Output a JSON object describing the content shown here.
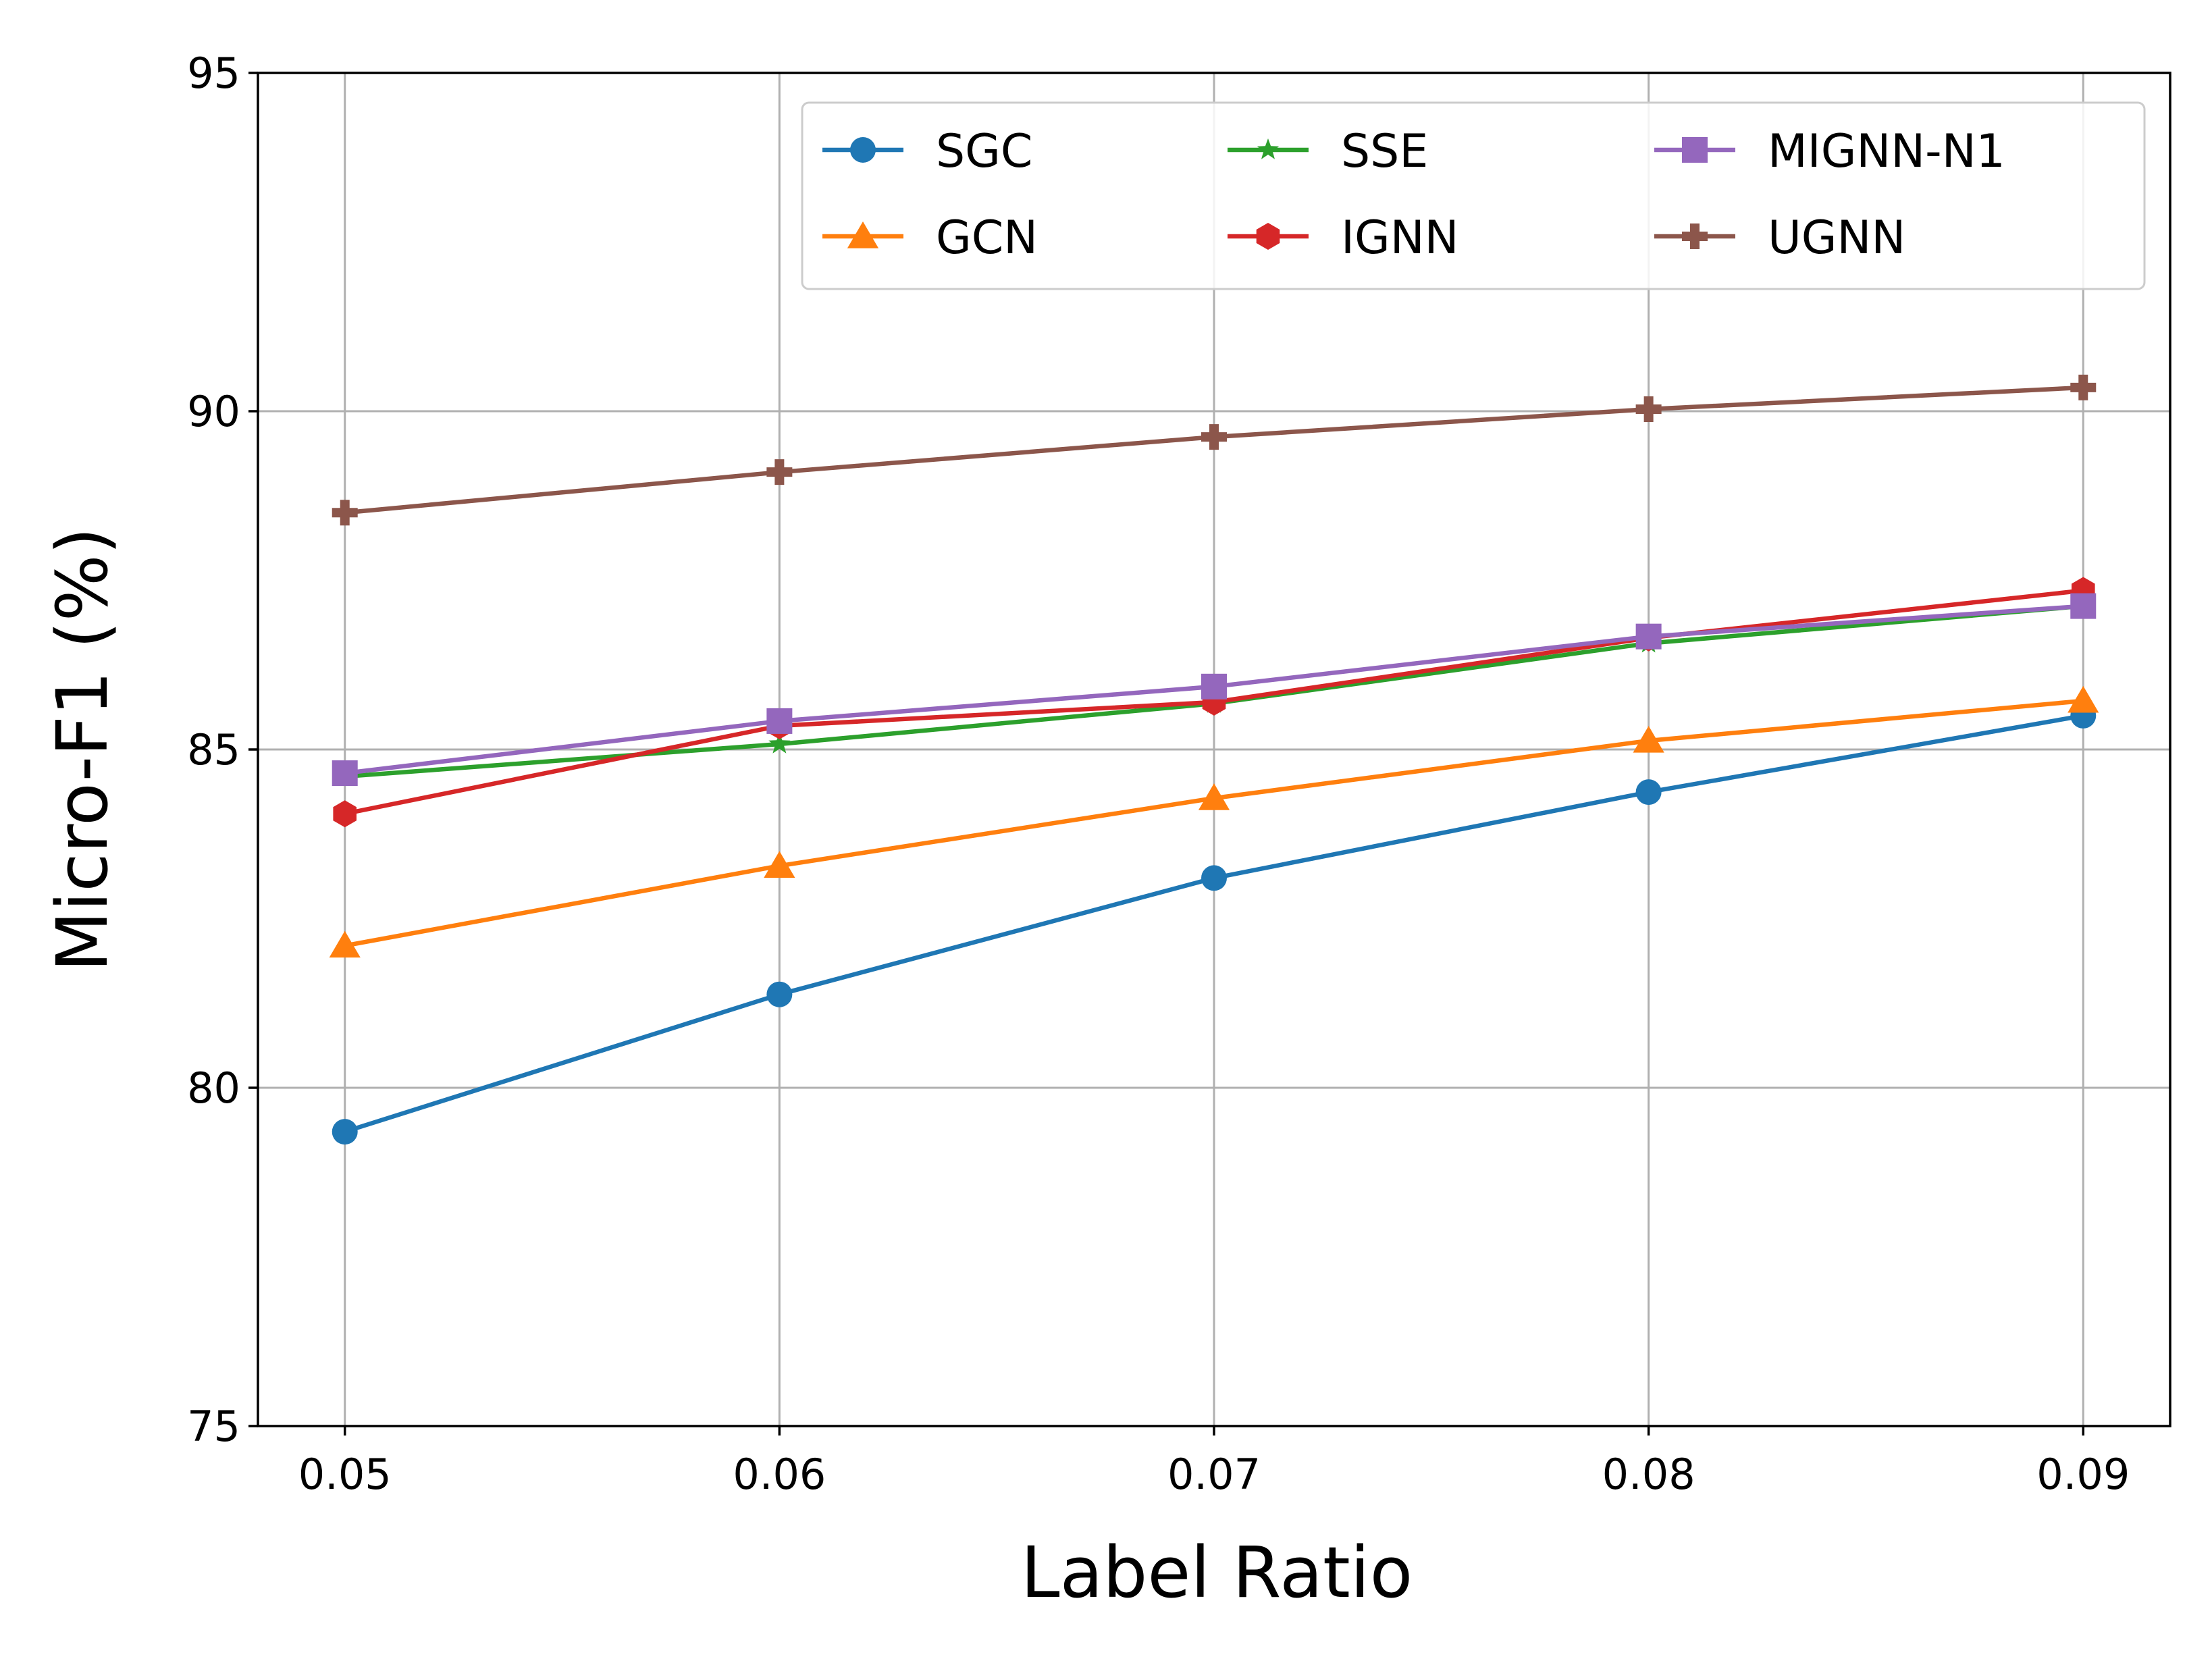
{
  "chart_data": {
    "type": "line",
    "title": "",
    "xlabel": "Label Ratio",
    "ylabel": "Micro-F1 (%)",
    "x": [
      0.05,
      0.06,
      0.07,
      0.08,
      0.09
    ],
    "x_tick_labels": [
      "0.05",
      "0.06",
      "0.07",
      "0.08",
      "0.09"
    ],
    "y_ticks": [
      75,
      80,
      85,
      90,
      95
    ],
    "y_tick_labels": [
      "75",
      "80",
      "85",
      "90",
      "95"
    ],
    "xlim": [
      0.048,
      0.092
    ],
    "ylim": [
      75,
      95
    ],
    "grid": true,
    "legend_position": "top-right",
    "legend_columns": 3,
    "series": [
      {
        "name": "SGC",
        "color": "#1f77b4",
        "marker": "circle",
        "values": [
          79.35,
          81.38,
          83.1,
          84.37,
          85.5
        ]
      },
      {
        "name": "GCN",
        "color": "#ff7f0e",
        "marker": "triangle",
        "values": [
          82.1,
          83.28,
          84.28,
          85.13,
          85.72
        ]
      },
      {
        "name": "SSE",
        "color": "#2ca02c",
        "marker": "star",
        "values": [
          84.6,
          85.08,
          85.68,
          86.57,
          87.12
        ]
      },
      {
        "name": "IGNN",
        "color": "#d62728",
        "marker": "hexagon",
        "values": [
          84.05,
          85.35,
          85.7,
          86.65,
          87.35
        ]
      },
      {
        "name": "MIGNN-N1",
        "color": "#9467bd",
        "marker": "square",
        "values": [
          84.65,
          85.42,
          85.93,
          86.67,
          87.12
        ]
      },
      {
        "name": "UGNN",
        "color": "#8c564b",
        "marker": "plus",
        "values": [
          88.5,
          89.1,
          89.62,
          90.03,
          90.35
        ]
      }
    ]
  }
}
